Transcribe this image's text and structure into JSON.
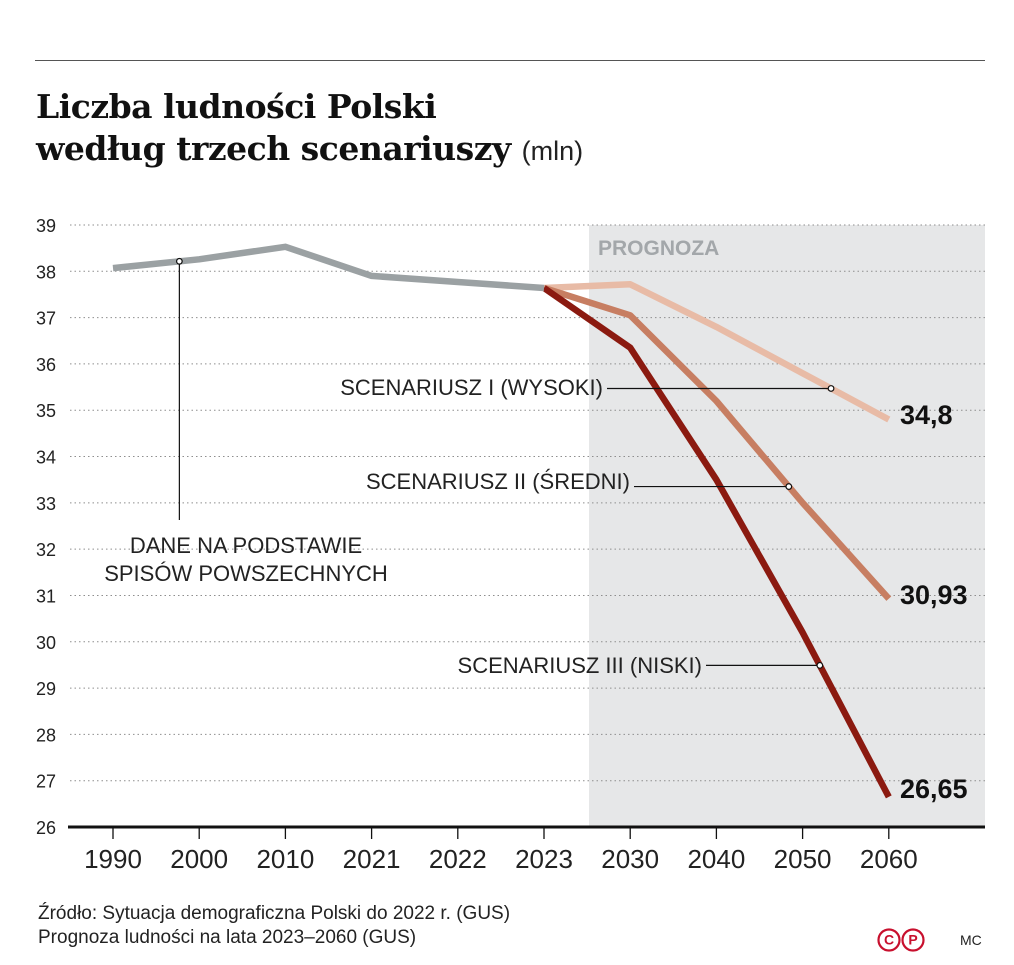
{
  "title_line1": "Liczba ludności Polski",
  "title_line2": "według trzech scenariuszy",
  "unit": "(mln)",
  "chart_data": {
    "type": "line",
    "categories": [
      "1990",
      "2000",
      "2010",
      "2021",
      "2022",
      "2023",
      "2030",
      "2040",
      "2050",
      "2060"
    ],
    "ylim": [
      26,
      39
    ],
    "yticks": [
      26,
      27,
      28,
      29,
      30,
      31,
      32,
      33,
      34,
      35,
      36,
      37,
      38,
      39
    ],
    "grid": true,
    "forecast_label": "PROGNOZA",
    "forecast_from_category": "2023",
    "series": [
      {
        "name": "DANE NA PODSTAWIE SPISÓW POWSZECHNYCH",
        "color": "#9ba1a3",
        "values": [
          38.07,
          38.26,
          38.53,
          37.9,
          37.77,
          37.64,
          null,
          null,
          null,
          null
        ]
      },
      {
        "name": "SCENARIUSZ I (WYSOKI)",
        "color": "#e8bba6",
        "values": [
          null,
          null,
          null,
          null,
          null,
          37.64,
          37.72,
          36.8,
          35.8,
          34.8
        ]
      },
      {
        "name": "SCENARIUSZ II (ŚREDNI)",
        "color": "#c77e62",
        "values": [
          null,
          null,
          null,
          null,
          null,
          37.64,
          37.05,
          35.2,
          33.0,
          30.93
        ]
      },
      {
        "name": "SCENARIUSZ III (NISKI)",
        "color": "#8b1a10",
        "values": [
          null,
          null,
          null,
          null,
          null,
          37.64,
          36.35,
          33.5,
          30.2,
          26.65
        ]
      }
    ],
    "end_labels": [
      "34,8",
      "30,93",
      "26,65"
    ]
  },
  "source_line1": "Źródło: Sytuacja demograficzna Polski do 2022 r. (GUS)",
  "source_line2": "Prognoza ludności na lata 2023–2060 (GUS)",
  "logo_text": "CP",
  "credit": "MC"
}
